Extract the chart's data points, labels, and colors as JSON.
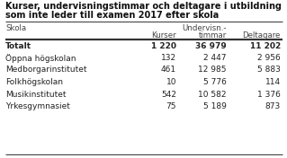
{
  "title_line1": "Kurser, undervisningstimmar och deltagare i utbildning",
  "title_line2": "som inte leder till examen 2017 efter skola",
  "rows": [
    {
      "skola": "Totalt",
      "kurser": "1 220",
      "timmar": "36 979",
      "deltagare": "11 202",
      "bold": true
    },
    {
      "skola": "Öppna högskolan",
      "kurser": "132",
      "timmar": "2 447",
      "deltagare": "2 956",
      "bold": false
    },
    {
      "skola": "Medborgarinstitutet",
      "kurser": "461",
      "timmar": "12 985",
      "deltagare": "5 883",
      "bold": false
    },
    {
      "skola": "Folkhögskolan",
      "kurser": "10",
      "timmar": "5 776",
      "deltagare": "114",
      "bold": false
    },
    {
      "skola": "Musikinstitutet",
      "kurser": "542",
      "timmar": "10 582",
      "deltagare": "1 376",
      "bold": false
    },
    {
      "skola": "Yrkesgymnasiet",
      "kurser": "75",
      "timmar": "5 189",
      "deltagare": "873",
      "bold": false
    }
  ],
  "bg_color": "#ffffff",
  "text_color": "#222222",
  "header_color": "#444444",
  "title_color": "#111111",
  "line_color": "#333333"
}
